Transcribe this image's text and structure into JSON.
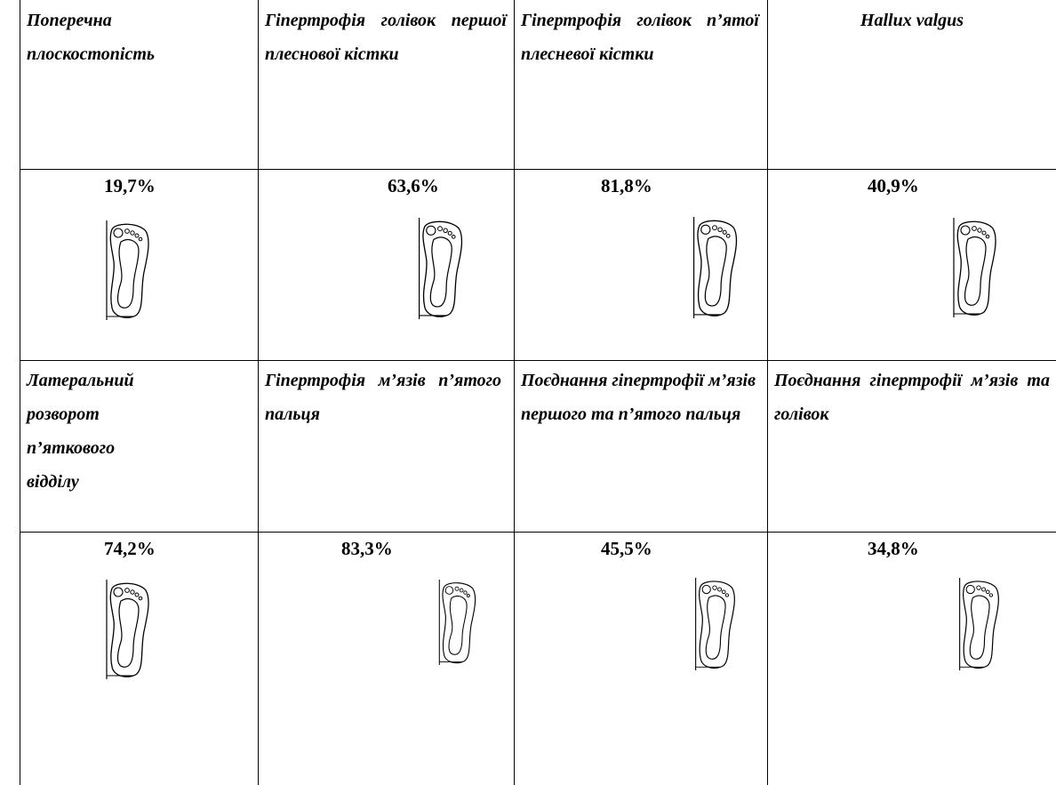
{
  "table": {
    "rows": [
      [
        "Поперечна плоскостопість",
        "Гіпертрофія голівок першої плеснової кістки",
        "Гіпертрофія голівок п’ятої плесневої кістки",
        "Hallux valgus"
      ],
      [
        "19,7%",
        "63,6%",
        "81,8%",
        "40,9%"
      ],
      [
        "Латеральний розворот п’яткового відділу",
        "Гіпертрофія м’язів п’ятого пальця",
        "Поєднання гіпертрофії м’язів першого та п’ятого пальця",
        "Поєднання гіпертрофії м’язів та голівок"
      ],
      [
        "74,2%",
        "83,3%",
        "45,5%",
        "34,8%"
      ]
    ]
  }
}
